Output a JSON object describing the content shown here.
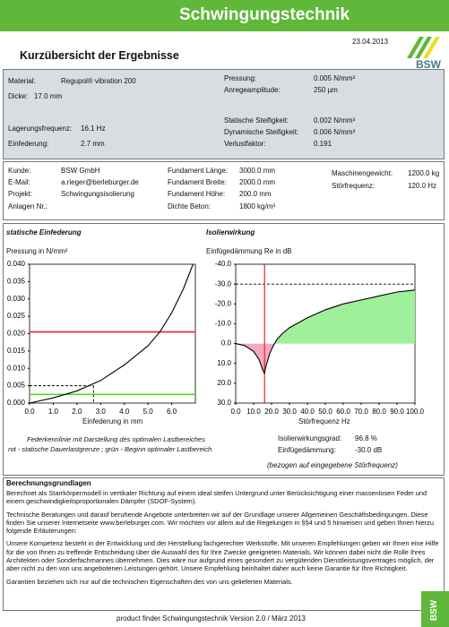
{
  "header": {
    "title": "Schwingungstechnik",
    "date": "23.04.2013",
    "subtitle": "Kurzübersicht der Ergebnisse",
    "logo": "BSW"
  },
  "material": {
    "left": [
      [
        "Material:",
        "Regupol® vibration 200"
      ],
      [
        "Dicke:",
        "17.0 mm"
      ],
      [
        "Lagerungsfrequenz:",
        "16.1 Hz"
      ],
      [
        "Einfederung:",
        "2.7 mm"
      ]
    ],
    "right": [
      [
        "Pressung:",
        "0.005 N/mm²"
      ],
      [
        "Anregeamplitude:",
        "250 µm"
      ],
      [
        "Statische Steifigkeit:",
        "0.002 N/mm³"
      ],
      [
        "Dynamische Steifigkeit:",
        "0.006 N/mm³"
      ],
      [
        "Verlustfaktor:",
        "0.191"
      ]
    ]
  },
  "customer": {
    "left": [
      [
        "Kunde:",
        "BSW GmbH"
      ],
      [
        "E-Mail:",
        "a.rieger@berleburger.de"
      ],
      [
        "Projekt:",
        "Schwingungsisolierung"
      ],
      [
        "Anlagen Nr.:"
      ]
    ],
    "middle": [
      [
        "Fundament Länge:",
        "3000.0 mm"
      ],
      [
        "Fundament Breite:",
        "2000.0 mm"
      ],
      [
        "Fundament Höhe:",
        "200.0 mm"
      ],
      [
        "Dichte Beton:",
        "1800 kg/m³"
      ]
    ],
    "right": [
      [
        "Maschinengewicht:",
        "1200.0 kg"
      ],
      [
        "Störfrequenz:",
        "120.0 Hz"
      ]
    ]
  },
  "chart_data": [
    {
      "type": "line",
      "title": "statische Einfederung",
      "y_label": "Pressung in N/mm²",
      "x_label": "Einfederung in mm",
      "caption": [
        "Federkennlinie mit Darstellung des optimalen Lastbereiches",
        "rot - statische Dauerlastgrenze ; grün - Beginn optimaler Lastbereich"
      ],
      "x": [
        0,
        1,
        2,
        3,
        4,
        5,
        5.5,
        6,
        6.5,
        6.9
      ],
      "series": [
        {
          "color": "#000000",
          "values": [
            0,
            0.0015,
            0.0035,
            0.0065,
            0.011,
            0.0165,
            0.0205,
            0.026,
            0.033,
            0.04
          ]
        }
      ],
      "xlim": [
        0,
        7
      ],
      "ylim": [
        0,
        0.04
      ],
      "xticks": [
        {
          "value": 0,
          "label": "0.0"
        },
        {
          "value": 1,
          "label": "1.0"
        },
        {
          "value": 2,
          "label": "2.0"
        },
        {
          "value": 3,
          "label": "3.0"
        },
        {
          "value": 4,
          "label": "4.0"
        },
        {
          "value": 5,
          "label": "5.0"
        },
        {
          "value": 6,
          "label": "6.0"
        }
      ],
      "yticks": [
        {
          "value": 0,
          "label": "0.000"
        },
        {
          "value": 0.005,
          "label": "0.005"
        },
        {
          "value": 0.01,
          "label": "0.010"
        },
        {
          "value": 0.015,
          "label": "0.015"
        },
        {
          "value": 0.02,
          "label": "0.020"
        },
        {
          "value": 0.025,
          "label": "0.025"
        },
        {
          "value": 0.03,
          "label": "0.030"
        },
        {
          "value": 0.035,
          "label": "0.035"
        },
        {
          "value": 0.04,
          "label": "0.040"
        }
      ],
      "hlines": [
        {
          "value": 0.0205,
          "color": "#e8261c",
          "dashed": false
        },
        {
          "value": 0.0025,
          "color": "#3ee61e",
          "dashed": false
        }
      ],
      "operating_point": {
        "x": 2.7,
        "y": 0.005
      }
    },
    {
      "type": "area",
      "title": "Isolierwirkung",
      "y_label": "Einfügedämmung Re in dB",
      "x_label": "Störfrequenz Hz",
      "x": [
        0,
        5,
        10,
        13,
        15,
        16,
        17,
        19,
        21,
        23,
        26,
        30,
        40,
        50,
        60,
        70,
        80,
        90,
        100
      ],
      "series": [
        {
          "color": "#000000",
          "values": [
            0,
            1,
            4,
            8,
            13,
            15,
            11,
            5,
            1,
            -2,
            -5,
            -8,
            -13,
            -17,
            -20,
            -22,
            -24,
            -26,
            -27
          ]
        }
      ],
      "fill_positive": "#f5a9bf",
      "fill_negative": "#9ef09a",
      "xlim": [
        0,
        100
      ],
      "ylim": [
        30,
        -40
      ],
      "xticks": [
        {
          "value": 0,
          "label": "0.0"
        },
        {
          "value": 10,
          "label": "10.0"
        },
        {
          "value": 20,
          "label": "20.0"
        },
        {
          "value": 30,
          "label": "30.0"
        },
        {
          "value": 40,
          "label": "40.0"
        },
        {
          "value": 50,
          "label": "50.0"
        },
        {
          "value": 60,
          "label": "60.0"
        },
        {
          "value": 70,
          "label": "70.0"
        },
        {
          "value": 80,
          "label": "80.0"
        },
        {
          "value": 90,
          "label": "90.0"
        },
        {
          "value": 100,
          "label": "100.0"
        }
      ],
      "yticks": [
        {
          "value": -40,
          "label": "-40.0"
        },
        {
          "value": -30,
          "label": "-30.0"
        },
        {
          "value": -20,
          "label": "-20.0"
        },
        {
          "value": -10,
          "label": "-10.0"
        },
        {
          "value": 0,
          "label": "0.0"
        },
        {
          "value": 10,
          "label": "10.0"
        },
        {
          "value": 20,
          "label": "20.0"
        },
        {
          "value": 30,
          "label": "30.0"
        }
      ],
      "hlines": [
        {
          "value": -30,
          "color": "#000000",
          "dashed": true
        }
      ],
      "vlines": [
        {
          "value": 16.1,
          "color": "#e8261c",
          "dashed": false
        }
      ],
      "stats": [
        [
          "Isolierwirkungsgrad:",
          "96.8 %"
        ],
        [
          "Einfügedämmung:",
          "-30.0 dB"
        ]
      ],
      "note": "(bezogen auf eingegebene Störfrequenz)"
    }
  ],
  "basis": {
    "title": "Berechnungsgrundlagen",
    "paragraphs": [
      "Berechnet als Starrkörpermodell in vertikaler Richtung auf einem ideal steifen Untergrund unter Berücksichtigung einer massenlosen Feder und einem geschwindigkeitsproportionalen Dämpfer (SDOF-System).",
      "Technische Beratungen und darauf beruhende Angebote unterbreiten wir auf der Grundlage unserer Allgemeinen Geschäftsbedingungen. Diese finden Sie unserer Internetseite www.berleburger.com. Wir möchten vor allem auf die Regelungen in §§4 und 5 hinweisen und geben Ihnen hierzu folgende Erläuterungen:",
      "Unsere Kompetenz besteht in der Entwicklung und der Herstellung fachgerechter Werkstoffe. Mit unseren Empfehlungen geben wir Ihnen eine Hilfe für die von Ihnen zu treffende Entscheidung über die Auswahl des für Ihre Zwecke geeigneten Materials. Wir können dabei nicht die Rolle Ihres Architekten oder Sonderfachmannes übernehmen. Dies wäre nur aufgrund eines gesondert zu vergütenden Dienstleistungsvertrages möglich, der aber nicht zu den von uns angebotenen Leistungen gehört. Unsere Empfehlung beinhaltet daher auch keine Garantie für Ihre Richtigkeit.",
      "Garantien beziehen sich nur auf die technischen Eigenschaften des von uns gelieferten Materials."
    ]
  },
  "footer": "product finder Schwingungstechnik Version 2.0 / März 2013"
}
